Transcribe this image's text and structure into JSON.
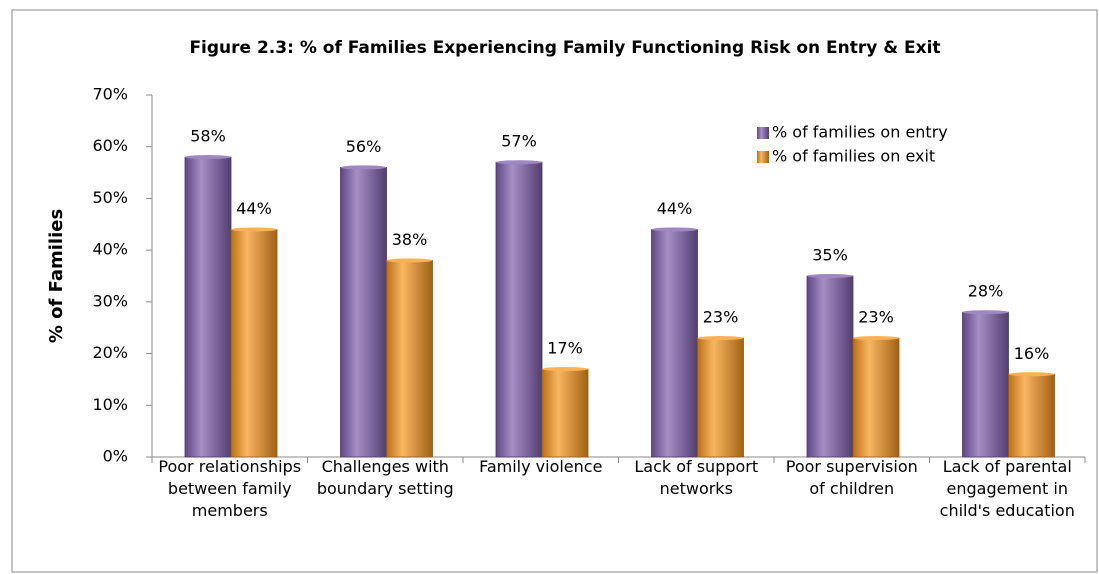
{
  "chart_data": {
    "type": "bar",
    "title": "Figure 2.3: % of Families Experiencing Family Functioning Risk on Entry & Exit",
    "ylabel": "% of Families",
    "categories": [
      "Poor relationships between family members",
      "Challenges with boundary setting",
      "Family violence",
      "Lack of support networks",
      "Poor supervision of children",
      "Lack of parental engagement in child's education"
    ],
    "series": [
      {
        "name": "% of families on entry",
        "color": "#7f5fae",
        "values": [
          58,
          56,
          57,
          44,
          35,
          28
        ],
        "value_labels": [
          "58%",
          "56%",
          "57%",
          "44%",
          "35%",
          "28%"
        ]
      },
      {
        "name": "% of families on exit",
        "color": "#f7961e",
        "values": [
          44,
          38,
          17,
          23,
          23,
          16
        ],
        "value_labels": [
          "44%",
          "38%",
          "17%",
          "23%",
          "23%",
          "16%"
        ]
      }
    ],
    "ylim": [
      0,
      70
    ],
    "yticks": [
      {
        "value": 0,
        "label": "0%"
      },
      {
        "value": 10,
        "label": "10%"
      },
      {
        "value": 20,
        "label": "20%"
      },
      {
        "value": 30,
        "label": "30%"
      },
      {
        "value": 40,
        "label": "40%"
      },
      {
        "value": 50,
        "label": "50%"
      },
      {
        "value": 60,
        "label": "60%"
      },
      {
        "value": 70,
        "label": "70%"
      }
    ],
    "legend": "upper right"
  }
}
